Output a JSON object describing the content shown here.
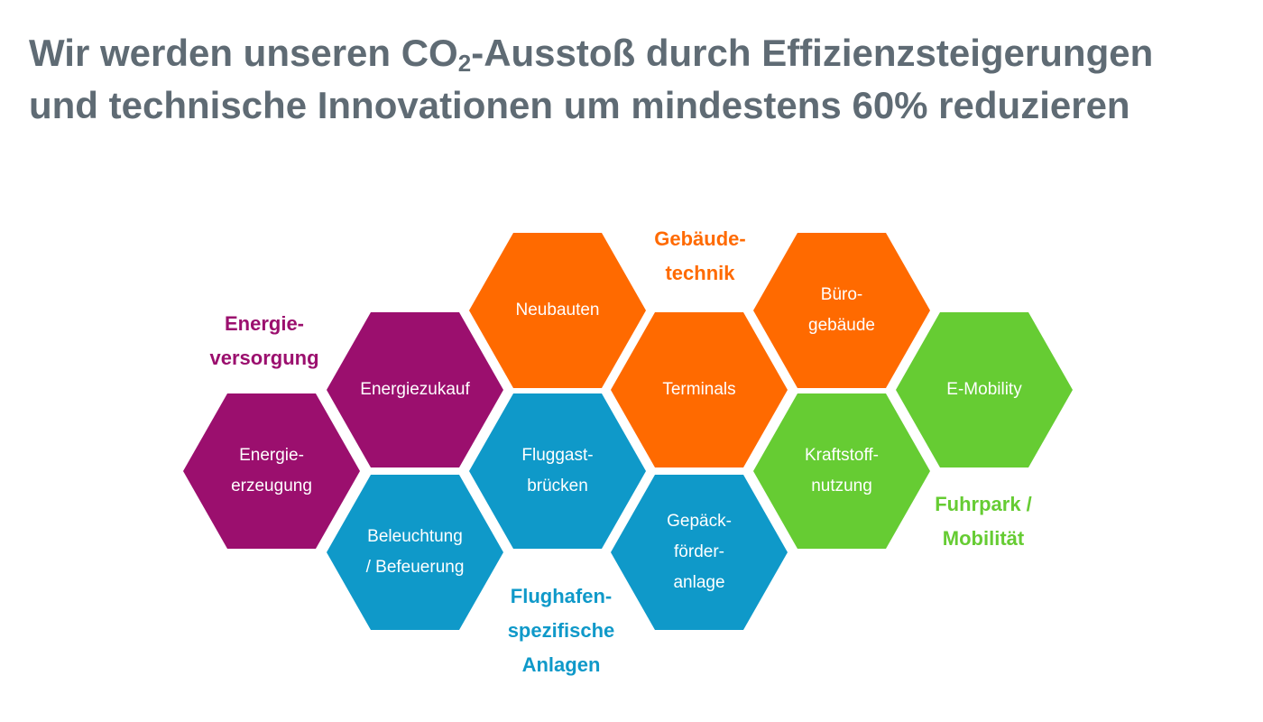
{
  "title": {
    "line1_before": "Wir werden unseren CO",
    "subscript": "2",
    "line1_after": "-Ausstoß durch Effizienzsteigerungen",
    "line2": "und technische Innovationen um mindestens 60% reduzieren"
  },
  "colors": {
    "title": "#5f6b74",
    "energie": "#9b0f6e",
    "gebaeude": "#ff6a00",
    "flughafen": "#0f99c9",
    "fuhrpark": "#66cc33"
  },
  "groups": {
    "energie": "Energie-\nversorgung",
    "gebaeude": "Gebäude-\ntechnik",
    "flughafen": "Flughafen-\nspezifische\nAnlagen",
    "fuhrpark": "Fuhrpark /\nMobilität"
  },
  "hexagons": {
    "energieerzeugung": "Energie-\nerzeugung",
    "energiezukauf": "Energiezukauf",
    "beleuchtung": "Beleuchtung\n/ Befeuerung",
    "neubauten": "Neubauten",
    "fluggastbruecken": "Fluggast-\nbrücken",
    "terminals": "Terminals",
    "gepaeckfoerderanlage": "Gepäck-\nförder-\nanlage",
    "buerogebaeude": "Büro-\ngebäude",
    "kraftstoffnutzung": "Kraftstoff-\nnutzung",
    "emobility": "E-Mobility"
  }
}
